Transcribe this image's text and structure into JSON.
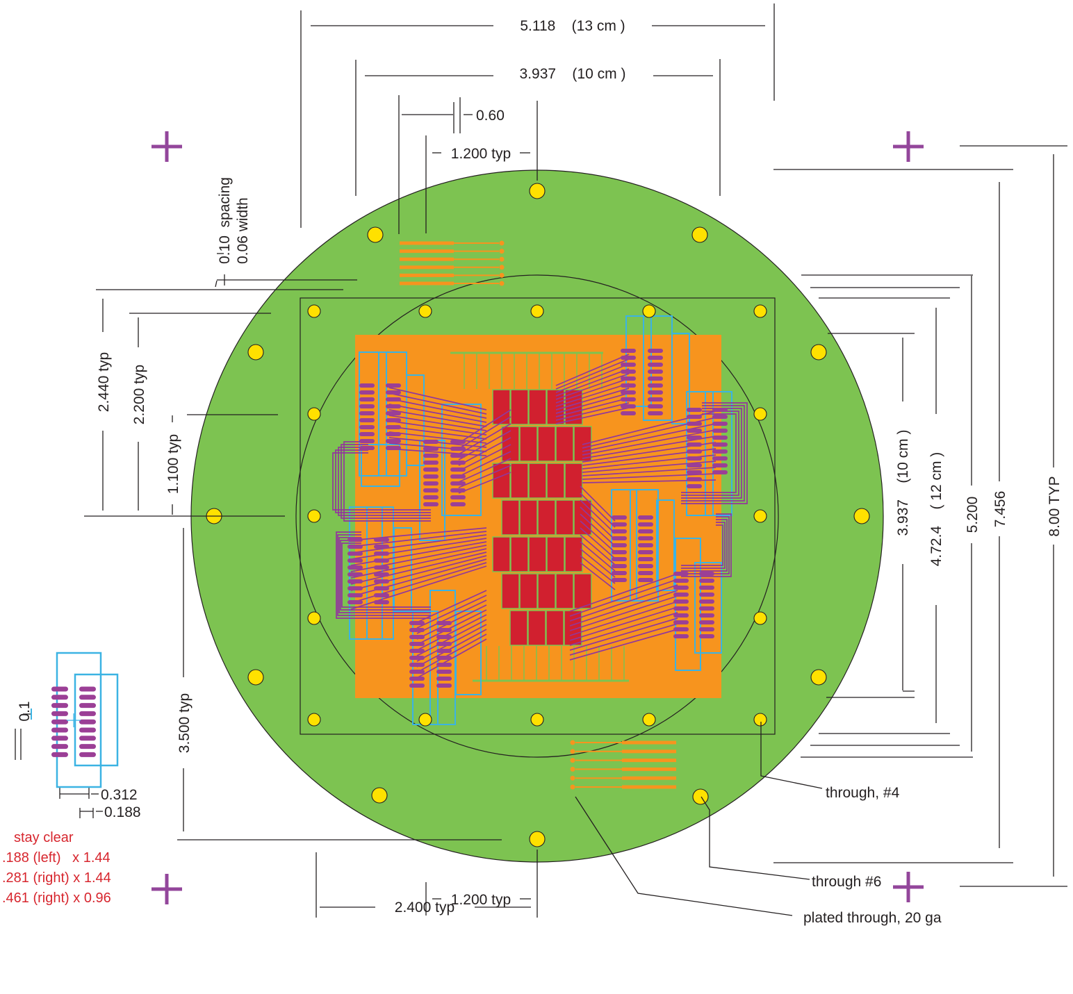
{
  "colors": {
    "board": "#7dc351",
    "copper": "#f7941e",
    "die": "#d1202f",
    "trace": "#92379b",
    "pad": "#9b3f96",
    "outline": "#3bb3e3",
    "via": "#ffe100",
    "mark": "#93469b",
    "note": "#d7262e"
  },
  "dimensions": {
    "top_width_13cm": "5.118    (13 cm )",
    "top_width_10cm": "3.937    (10 cm )",
    "pad_pitch": "0.60",
    "connector_pitch_top": "1.200 typ",
    "trace_spacing": "0.10  spacing",
    "trace_width": "0.06 width",
    "left_2440": "2.440 typ",
    "left_2200": "2.200 typ",
    "left_1100": "1.100 typ",
    "left_3500": "3.500 typ",
    "right_10cm": "3.937    (10 cm )",
    "right_12cm": "4.72.4    ( 12 cm )",
    "right_5200": "5.200",
    "right_7456": "7.456",
    "right_800": "8.00 TYP",
    "bottom_1200": "1.200 typ",
    "bottom_2400": "2.400 typ",
    "detail_pitch": "0.1",
    "detail_0312": "0.312",
    "detail_0188": "0.188"
  },
  "notes": {
    "stay_clear_title": "stay clear",
    "stay_clear_1": ".188 (left)   x 1.44",
    "stay_clear_2": ".281 (right) x 1.44",
    "stay_clear_3": ".461 (right) x 0.96"
  },
  "callouts": {
    "through_4": "through, #4",
    "through_6": "through #6",
    "plated_through": "plated through, 20 ga"
  },
  "icons": [
    "registration-mark-icon",
    "mounting-hole-icon",
    "plated-via-icon"
  ]
}
